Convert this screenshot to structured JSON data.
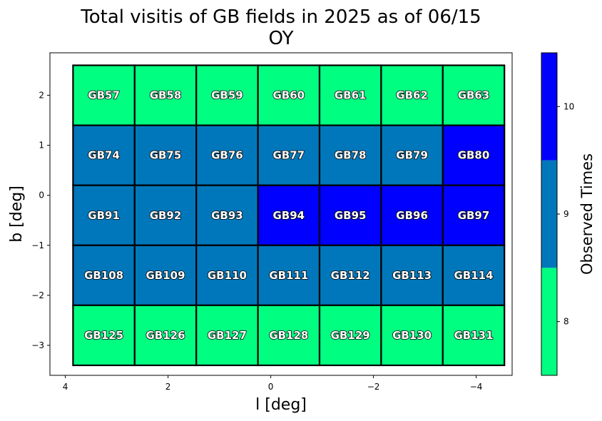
{
  "chart_data": {
    "type": "heatmap",
    "title_line1": "Total visitis of GB fields in 2025 as of 06/15",
    "title_line2": "OY",
    "xlabel": "l [deg]",
    "ylabel": "b [deg]",
    "xlim": [
      4.3,
      -4.7
    ],
    "ylim": [
      -3.6,
      2.85
    ],
    "x_ticks": [
      4,
      2,
      0,
      -2,
      -4
    ],
    "x_tick_labels": [
      "4",
      "2",
      "0",
      "−2",
      "−4"
    ],
    "y_ticks": [
      2,
      1,
      0,
      -1,
      -2,
      -3
    ],
    "y_tick_labels": [
      "2",
      "1",
      "0",
      "−1",
      "−2",
      "−3"
    ],
    "colorbar": {
      "label": "Observed Times",
      "levels": [
        {
          "value": 8,
          "color": "#00ff80"
        },
        {
          "value": 9,
          "color": "#0077bb"
        },
        {
          "value": 10,
          "color": "#0000ff"
        }
      ],
      "range": [
        7.5,
        10.5
      ],
      "ticks": [
        8,
        9,
        10
      ],
      "tick_labels": [
        "8",
        "9",
        "10"
      ]
    },
    "grid": {
      "l_edges": [
        3.85,
        2.65,
        1.45,
        0.25,
        -0.95,
        -2.15,
        -3.35,
        -4.55
      ],
      "b_edges": [
        2.6,
        1.4,
        0.2,
        -1.0,
        -2.2,
        -3.4
      ]
    },
    "fields": [
      [
        "GB57",
        "GB58",
        "GB59",
        "GB60",
        "GB61",
        "GB62",
        "GB63"
      ],
      [
        "GB74",
        "GB75",
        "GB76",
        "GB77",
        "GB78",
        "GB79",
        "GB80"
      ],
      [
        "GB91",
        "GB92",
        "GB93",
        "GB94",
        "GB95",
        "GB96",
        "GB97"
      ],
      [
        "GB108",
        "GB109",
        "GB110",
        "GB111",
        "GB112",
        "GB113",
        "GB114"
      ],
      [
        "GB125",
        "GB126",
        "GB127",
        "GB128",
        "GB129",
        "GB130",
        "GB131"
      ]
    ],
    "values": [
      [
        8,
        8,
        8,
        8,
        8,
        8,
        8
      ],
      [
        9,
        9,
        9,
        9,
        9,
        9,
        10
      ],
      [
        9,
        9,
        9,
        10,
        10,
        10,
        10
      ],
      [
        9,
        9,
        9,
        9,
        9,
        9,
        9
      ],
      [
        8,
        8,
        8,
        8,
        8,
        8,
        8
      ]
    ]
  }
}
